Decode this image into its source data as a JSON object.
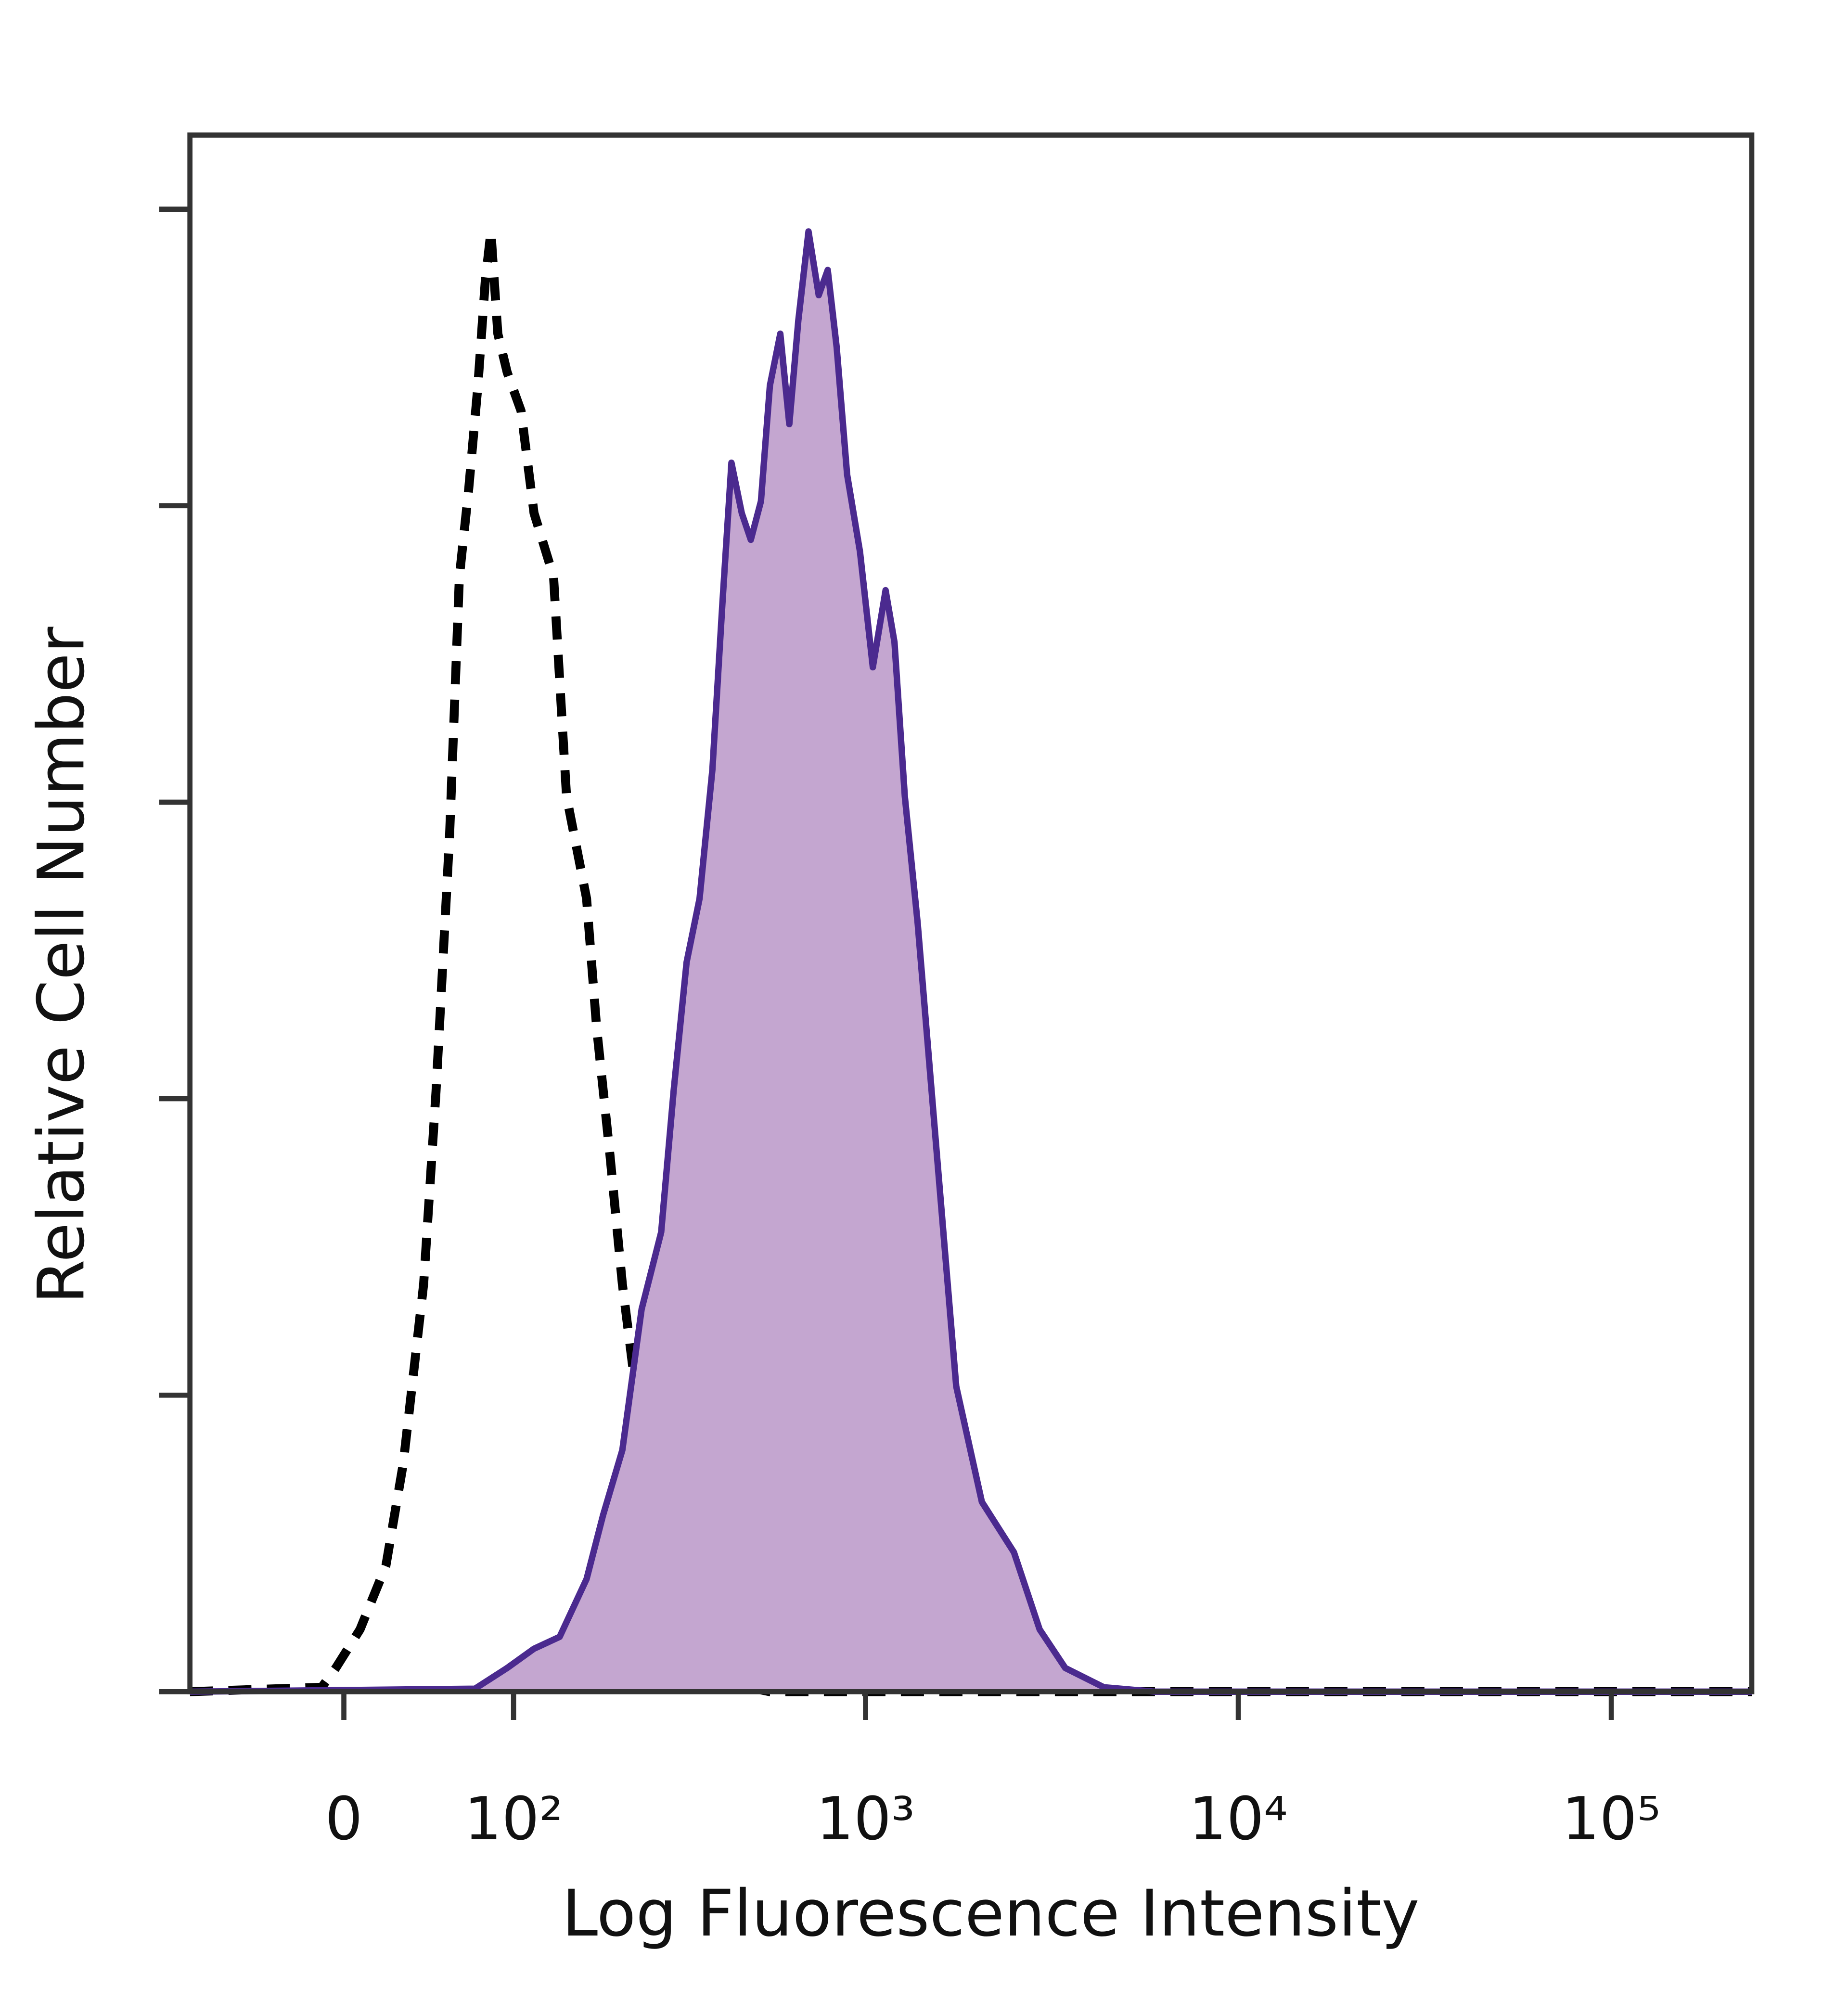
{
  "chart_data": {
    "type": "line",
    "x_label": "Log Fluorescence Intensity",
    "y_label": "Relative Cell Number",
    "xscale": "asinh",
    "xscale_cofactor": 80,
    "xlim": [
      -88,
      238000
    ],
    "xticks": [
      0,
      {
        "value": 100,
        "label": "10²"
      },
      {
        "value": 1000,
        "label": "10³"
      },
      {
        "value": 10000,
        "label": "10⁴"
      },
      {
        "value": 100000,
        "label": "10⁵"
      }
    ],
    "ylim": [
      0,
      105
    ],
    "yticks": [
      0,
      20,
      40,
      60,
      80,
      100
    ],
    "series": [
      {
        "color": "#000000",
        "line_style": "dashed",
        "x": [
          -88,
          -11,
          -4,
          8,
          21,
          30,
          41,
          48,
          56,
          62,
          68,
          74,
          79,
          83,
          88,
          95,
          106,
          117,
          135,
          148,
          170,
          182,
          199,
          216,
          235,
          256,
          289,
          341,
          401,
          552,
          238000
        ],
        "values": [
          0,
          0.3,
          1.6,
          4.2,
          8.5,
          15.4,
          27.5,
          40.5,
          57.8,
          75.2,
          81.2,
          88.1,
          95.1,
          98.5,
          91.6,
          89.0,
          86.4,
          79.5,
          75.2,
          60.4,
          53.5,
          44.8,
          36.2,
          27.5,
          20.6,
          13.7,
          7.6,
          2.4,
          0.7,
          0,
          0
        ]
      },
      {
        "color": "#4b2a8f",
        "fill": "#c4a6d0",
        "line_style": "solid",
        "x": [
          -88,
          72,
          95,
          117,
          141,
          170,
          190,
          216,
          245,
          278,
          301,
          327,
          355,
          385,
          410,
          434,
          463,
          490,
          522,
          552,
          589,
          623,
          659,
          702,
          748,
          791,
          836,
          892,
          966,
          1046,
          1132,
          1196,
          1275,
          1381,
          1555,
          1752,
          2053,
          2503,
          2933,
          3436,
          4359,
          5984,
          238000
        ],
        "values": [
          0,
          0.2,
          1.6,
          2.9,
          3.7,
          7.6,
          11.9,
          16.3,
          25.8,
          31.0,
          40.5,
          49.2,
          53.5,
          62.2,
          73.4,
          82.9,
          79.5,
          77.7,
          80.3,
          88.1,
          91.6,
          85.5,
          92.5,
          98.5,
          94.2,
          95.9,
          90.7,
          82.1,
          76.9,
          69.1,
          74.3,
          70.8,
          60.4,
          51.8,
          36.2,
          20.6,
          12.8,
          9.4,
          4.2,
          1.6,
          0.3,
          0,
          0
        ]
      }
    ]
  }
}
